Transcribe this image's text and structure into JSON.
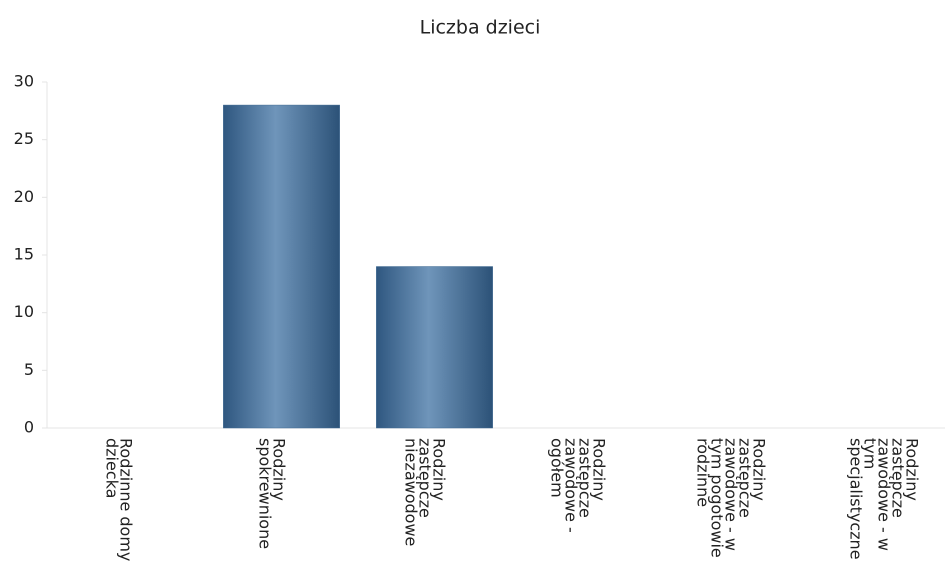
{
  "chart_data": {
    "type": "bar",
    "title": "Liczba dzieci",
    "categories": [
      "Rodzinne domy dziecka",
      "Rodziny spokrewnione",
      "Rodziny zastępcze niezawodowe",
      "Rodziny zastępcze zawodowe - ogółem",
      "Rodziny zastępcze zawodowe - w tym pogotowie rodzinne",
      "Rodziny zastępcze zawodowe - w tym specjalistyczne"
    ],
    "values": [
      0,
      28,
      14,
      0,
      0,
      0
    ],
    "color": "#3d6891",
    "ylim": [
      0,
      30
    ],
    "yticks": [
      0,
      5,
      10,
      15,
      20,
      25,
      30
    ],
    "grid": false
  }
}
